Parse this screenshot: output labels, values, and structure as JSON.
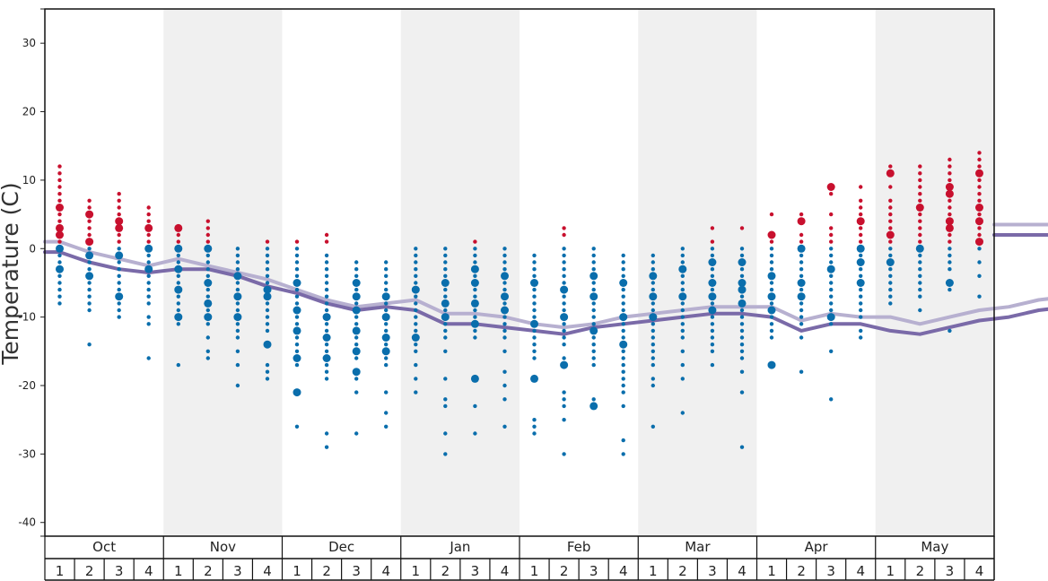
{
  "chart_data": {
    "type": "scatter",
    "ylabel": "Temperature (C)",
    "ylim": [
      -42,
      35
    ],
    "yticks": [
      30,
      20,
      10,
      0,
      -10,
      -20,
      -30,
      -40
    ],
    "months": [
      "Oct",
      "Nov",
      "Dec",
      "Jan",
      "Feb",
      "Mar",
      "Apr",
      "May"
    ],
    "weeks": [
      "1",
      "2",
      "3",
      "4"
    ],
    "shaded_months": [
      "Nov",
      "Jan",
      "Mar",
      "May"
    ],
    "colors": {
      "above_zero": "#c8102e",
      "below_zero": "#0a6eac",
      "line_light": "#b7b0d0",
      "line_dark": "#7a6aa8",
      "shade": "#f0f0f0"
    },
    "series": [
      {
        "kind": "line",
        "values": [
          1,
          -0.5,
          -1.5,
          -2.5,
          -1.5,
          -2.5,
          -3.5,
          -4.5,
          -6,
          -7.5,
          -8.5,
          -8,
          -7.5,
          -9.5,
          -9.5,
          -10,
          -11,
          -11.5,
          -11,
          -10,
          -9.5,
          -9,
          -8.5,
          -8.5,
          -8.5,
          -10.5,
          -9.5,
          -10,
          -10,
          -11,
          -10,
          -9,
          -8.5,
          -7.5,
          -7,
          -7,
          -6.5,
          -6.5,
          -5.5,
          -4.5,
          -3.5,
          -3,
          -2.5,
          0,
          1.5,
          2.5,
          3.5,
          3.5
        ]
      },
      {
        "kind": "line",
        "values": [
          -0.5,
          -2,
          -3,
          -3.5,
          -3,
          -3,
          -4,
          -5.5,
          -6.5,
          -8,
          -9,
          -8.5,
          -9,
          -11,
          -11,
          -11.5,
          -12,
          -12.5,
          -11.5,
          -11,
          -10.5,
          -10,
          -9.5,
          -9.5,
          -10,
          -12,
          -11,
          -11,
          -12,
          -12.5,
          -11.5,
          -10.5,
          -10,
          -9,
          -8.5,
          -8.5,
          -8,
          -7.5,
          -7,
          -6,
          -5,
          -4.5,
          -3,
          -1,
          0,
          1,
          1.5,
          2
        ]
      }
    ],
    "samples": [
      {
        "month": "Oct",
        "week": 1,
        "values": [
          12,
          11,
          10,
          9,
          8,
          7,
          6,
          5,
          4,
          3,
          2,
          1,
          0,
          -1,
          -2,
          -3,
          -4,
          -5,
          -6,
          -7,
          -8
        ],
        "large": [
          6,
          3,
          2,
          0,
          -3
        ]
      },
      {
        "month": "Oct",
        "week": 2,
        "values": [
          7,
          6,
          5,
          4,
          3,
          2,
          1,
          0,
          -1,
          -2,
          -3,
          -4,
          -5,
          -6,
          -7,
          -8,
          -9,
          -14
        ],
        "large": [
          5,
          1,
          -1,
          -4
        ]
      },
      {
        "month": "Oct",
        "week": 3,
        "values": [
          8,
          7,
          6,
          5,
          4,
          3,
          2,
          1,
          0,
          -1,
          -2,
          -3,
          -4,
          -5,
          -6,
          -7,
          -8,
          -9,
          -10
        ],
        "large": [
          4,
          3,
          -1,
          -7
        ]
      },
      {
        "month": "Oct",
        "week": 4,
        "values": [
          6,
          5,
          4,
          3,
          2,
          1,
          0,
          -1,
          -2,
          -3,
          -4,
          -5,
          -6,
          -7,
          -8,
          -10,
          -11,
          -16
        ],
        "large": [
          3,
          0,
          -3
        ]
      },
      {
        "month": "Nov",
        "week": 1,
        "values": [
          3,
          2,
          1,
          0,
          -1,
          -2,
          -3,
          -4,
          -5,
          -6,
          -7,
          -8,
          -9,
          -10,
          -11,
          -17
        ],
        "large": [
          3,
          0,
          -3,
          -6,
          -10
        ]
      },
      {
        "month": "Nov",
        "week": 2,
        "values": [
          4,
          3,
          2,
          1,
          0,
          -1,
          -2,
          -3,
          -4,
          -5,
          -6,
          -7,
          -8,
          -9,
          -10,
          -11,
          -13,
          -15,
          -16
        ],
        "large": [
          0,
          -5,
          -8,
          -10
        ]
      },
      {
        "month": "Nov",
        "week": 3,
        "values": [
          0,
          -1,
          -2,
          -3,
          -4,
          -5,
          -6,
          -7,
          -8,
          -9,
          -10,
          -11,
          -12,
          -13,
          -15,
          -17,
          -20
        ],
        "large": [
          -4,
          -7,
          -10
        ]
      },
      {
        "month": "Nov",
        "week": 4,
        "values": [
          1,
          0,
          -1,
          -2,
          -3,
          -4,
          -5,
          -6,
          -7,
          -8,
          -9,
          -10,
          -11,
          -12,
          -14,
          -17,
          -18,
          -19
        ],
        "large": [
          -6,
          -7,
          -14
        ]
      },
      {
        "month": "Dec",
        "week": 1,
        "values": [
          1,
          0,
          -1,
          -2,
          -3,
          -4,
          -5,
          -6,
          -7,
          -8,
          -9,
          -10,
          -11,
          -12,
          -13,
          -14,
          -15,
          -16,
          -17,
          -21,
          -26
        ],
        "large": [
          -5,
          -9,
          -12,
          -16,
          -21
        ]
      },
      {
        "month": "Dec",
        "week": 2,
        "values": [
          2,
          1,
          -1,
          -2,
          -3,
          -4,
          -5,
          -6,
          -7,
          -8,
          -9,
          -10,
          -11,
          -12,
          -13,
          -14,
          -15,
          -16,
          -17,
          -18,
          -19,
          -27,
          -29
        ],
        "large": [
          -10,
          -13,
          -16
        ]
      },
      {
        "month": "Dec",
        "week": 3,
        "values": [
          -2,
          -3,
          -4,
          -5,
          -6,
          -7,
          -8,
          -9,
          -10,
          -11,
          -12,
          -13,
          -14,
          -15,
          -16,
          -18,
          -19,
          -21,
          -27
        ],
        "large": [
          -5,
          -7,
          -9,
          -12,
          -15,
          -18
        ]
      },
      {
        "month": "Dec",
        "week": 4,
        "values": [
          -2,
          -3,
          -4,
          -5,
          -6,
          -7,
          -8,
          -9,
          -10,
          -11,
          -12,
          -13,
          -14,
          -15,
          -16,
          -17,
          -21,
          -24,
          -26
        ],
        "large": [
          -7,
          -10,
          -13,
          -15
        ]
      },
      {
        "month": "Jan",
        "week": 1,
        "values": [
          0,
          -1,
          -2,
          -3,
          -4,
          -5,
          -6,
          -7,
          -8,
          -9,
          -10,
          -11,
          -12,
          -13,
          -14,
          -15,
          -17,
          -19,
          -21
        ],
        "large": [
          -6,
          -6,
          -13
        ]
      },
      {
        "month": "Jan",
        "week": 2,
        "values": [
          0,
          -1,
          -2,
          -3,
          -4,
          -5,
          -6,
          -7,
          -8,
          -9,
          -10,
          -11,
          -12,
          -13,
          -15,
          -19,
          -22,
          -23,
          -27,
          -30
        ],
        "large": [
          -5,
          -8,
          -10
        ]
      },
      {
        "month": "Jan",
        "week": 3,
        "values": [
          1,
          0,
          -1,
          -2,
          -3,
          -4,
          -5,
          -6,
          -7,
          -8,
          -9,
          -10,
          -11,
          -12,
          -13,
          -19,
          -23,
          -27
        ],
        "large": [
          -3,
          -5,
          -8,
          -11,
          -19
        ]
      },
      {
        "month": "Jan",
        "week": 4,
        "values": [
          0,
          -1,
          -2,
          -3,
          -4,
          -5,
          -6,
          -7,
          -8,
          -9,
          -10,
          -11,
          -12,
          -13,
          -15,
          -18,
          -20,
          -22,
          -26
        ],
        "large": [
          -4,
          -7,
          -9
        ]
      },
      {
        "month": "Feb",
        "week": 1,
        "values": [
          -1,
          -2,
          -3,
          -4,
          -5,
          -6,
          -7,
          -8,
          -9,
          -10,
          -11,
          -12,
          -13,
          -14,
          -15,
          -16,
          -19,
          -25,
          -26,
          -27
        ],
        "large": [
          -5,
          -11,
          -19
        ]
      },
      {
        "month": "Feb",
        "week": 2,
        "values": [
          3,
          2,
          0,
          -1,
          -2,
          -3,
          -4,
          -5,
          -6,
          -7,
          -8,
          -9,
          -10,
          -11,
          -12,
          -13,
          -14,
          -16,
          -17,
          -21,
          -22,
          -23,
          -25,
          -30
        ],
        "large": [
          -6,
          -10,
          -17
        ]
      },
      {
        "month": "Feb",
        "week": 3,
        "values": [
          0,
          -1,
          -2,
          -3,
          -4,
          -5,
          -6,
          -7,
          -8,
          -9,
          -10,
          -11,
          -12,
          -13,
          -14,
          -15,
          -16,
          -17,
          -22,
          -23
        ],
        "large": [
          -4,
          -7,
          -12,
          -23
        ]
      },
      {
        "month": "Feb",
        "week": 4,
        "values": [
          -1,
          -2,
          -3,
          -4,
          -5,
          -6,
          -7,
          -8,
          -9,
          -10,
          -11,
          -12,
          -13,
          -14,
          -15,
          -16,
          -17,
          -18,
          -19,
          -20,
          -21,
          -23,
          -28,
          -30
        ],
        "large": [
          -5,
          -10,
          -14
        ]
      },
      {
        "month": "Mar",
        "week": 1,
        "values": [
          -1,
          -2,
          -3,
          -4,
          -5,
          -6,
          -7,
          -8,
          -9,
          -10,
          -11,
          -12,
          -13,
          -14,
          -15,
          -16,
          -17,
          -19,
          -20,
          -26
        ],
        "large": [
          -4,
          -7,
          -10
        ]
      },
      {
        "month": "Mar",
        "week": 2,
        "values": [
          0,
          -1,
          -2,
          -3,
          -4,
          -5,
          -6,
          -7,
          -8,
          -9,
          -10,
          -11,
          -12,
          -13,
          -15,
          -17,
          -19,
          -24
        ],
        "large": [
          -3,
          -7
        ]
      },
      {
        "month": "Mar",
        "week": 3,
        "values": [
          3,
          1,
          0,
          -1,
          -2,
          -3,
          -4,
          -5,
          -6,
          -7,
          -8,
          -9,
          -10,
          -11,
          -12,
          -13,
          -14,
          -15,
          -17
        ],
        "large": [
          -2,
          -5,
          -7,
          -9
        ]
      },
      {
        "month": "Mar",
        "week": 4,
        "values": [
          3,
          0,
          -1,
          -2,
          -3,
          -4,
          -5,
          -6,
          -7,
          -8,
          -9,
          -10,
          -11,
          -12,
          -13,
          -14,
          -15,
          -16,
          -18,
          -21,
          -29
        ],
        "large": [
          -2,
          -5,
          -6,
          -8
        ]
      },
      {
        "month": "Apr",
        "week": 1,
        "values": [
          5,
          2,
          1,
          0,
          -1,
          -2,
          -3,
          -4,
          -5,
          -6,
          -7,
          -8,
          -9,
          -10,
          -11,
          -12,
          -13,
          -17
        ],
        "large": [
          2,
          -4,
          -7,
          -9,
          -17
        ]
      },
      {
        "month": "Apr",
        "week": 2,
        "values": [
          5,
          4,
          2,
          1,
          0,
          -1,
          -2,
          -3,
          -4,
          -5,
          -6,
          -7,
          -8,
          -9,
          -10,
          -11,
          -13,
          -18
        ],
        "large": [
          4,
          0,
          -5,
          -7
        ]
      },
      {
        "month": "Apr",
        "week": 3,
        "values": [
          9,
          8,
          5,
          3,
          2,
          1,
          0,
          -1,
          -2,
          -3,
          -4,
          -5,
          -6,
          -7,
          -8,
          -9,
          -10,
          -11,
          -15,
          -22
        ],
        "large": [
          9,
          -3,
          -10
        ]
      },
      {
        "month": "Apr",
        "week": 4,
        "values": [
          9,
          7,
          6,
          5,
          4,
          3,
          2,
          1,
          0,
          -1,
          -2,
          -3,
          -4,
          -5,
          -6,
          -7,
          -8,
          -9,
          -10,
          -12,
          -13
        ],
        "large": [
          4,
          0,
          -2,
          -5
        ]
      },
      {
        "month": "May",
        "week": 1,
        "values": [
          12,
          11,
          9,
          7,
          6,
          5,
          4,
          3,
          2,
          1,
          0,
          -1,
          -2,
          -3,
          -4,
          -5,
          -6,
          -7,
          -8
        ],
        "large": [
          11,
          2,
          -2
        ]
      },
      {
        "month": "May",
        "week": 2,
        "values": [
          12,
          11,
          10,
          9,
          8,
          7,
          6,
          5,
          4,
          3,
          2,
          1,
          0,
          -1,
          -2,
          -3,
          -4,
          -5,
          -6,
          -7,
          -9
        ],
        "large": [
          6,
          0
        ]
      },
      {
        "month": "May",
        "week": 3,
        "values": [
          13,
          12,
          11,
          10,
          9,
          8,
          7,
          6,
          5,
          4,
          3,
          2,
          1,
          0,
          -1,
          -2,
          -3,
          -5,
          -6,
          -12
        ],
        "large": [
          9,
          8,
          4,
          3,
          -5
        ]
      },
      {
        "month": "May",
        "week": 4,
        "values": [
          14,
          13,
          12,
          11,
          10,
          9,
          8,
          7,
          6,
          5,
          4,
          3,
          2,
          1,
          0,
          -2,
          -4,
          -7
        ],
        "large": [
          11,
          6,
          4,
          1
        ]
      }
    ]
  }
}
